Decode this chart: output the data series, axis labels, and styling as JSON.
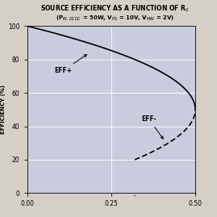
{
  "ylabel": "EFFICIENCY (%)",
  "xlim": [
    0,
    0.5
  ],
  "ylim": [
    0,
    100
  ],
  "xticks": [
    0,
    0.25,
    0.5
  ],
  "yticks": [
    0,
    20,
    40,
    60,
    80,
    100
  ],
  "fig_bg_color": "#d4d0c8",
  "plot_bg_color": "#c8ccdc",
  "r_bistable": 0.32,
  "Vps": 10.0,
  "Pin": 50.0,
  "Vmin": 2.0,
  "eff_plus_label": "EFF+",
  "eff_minus_label": "EFF-"
}
